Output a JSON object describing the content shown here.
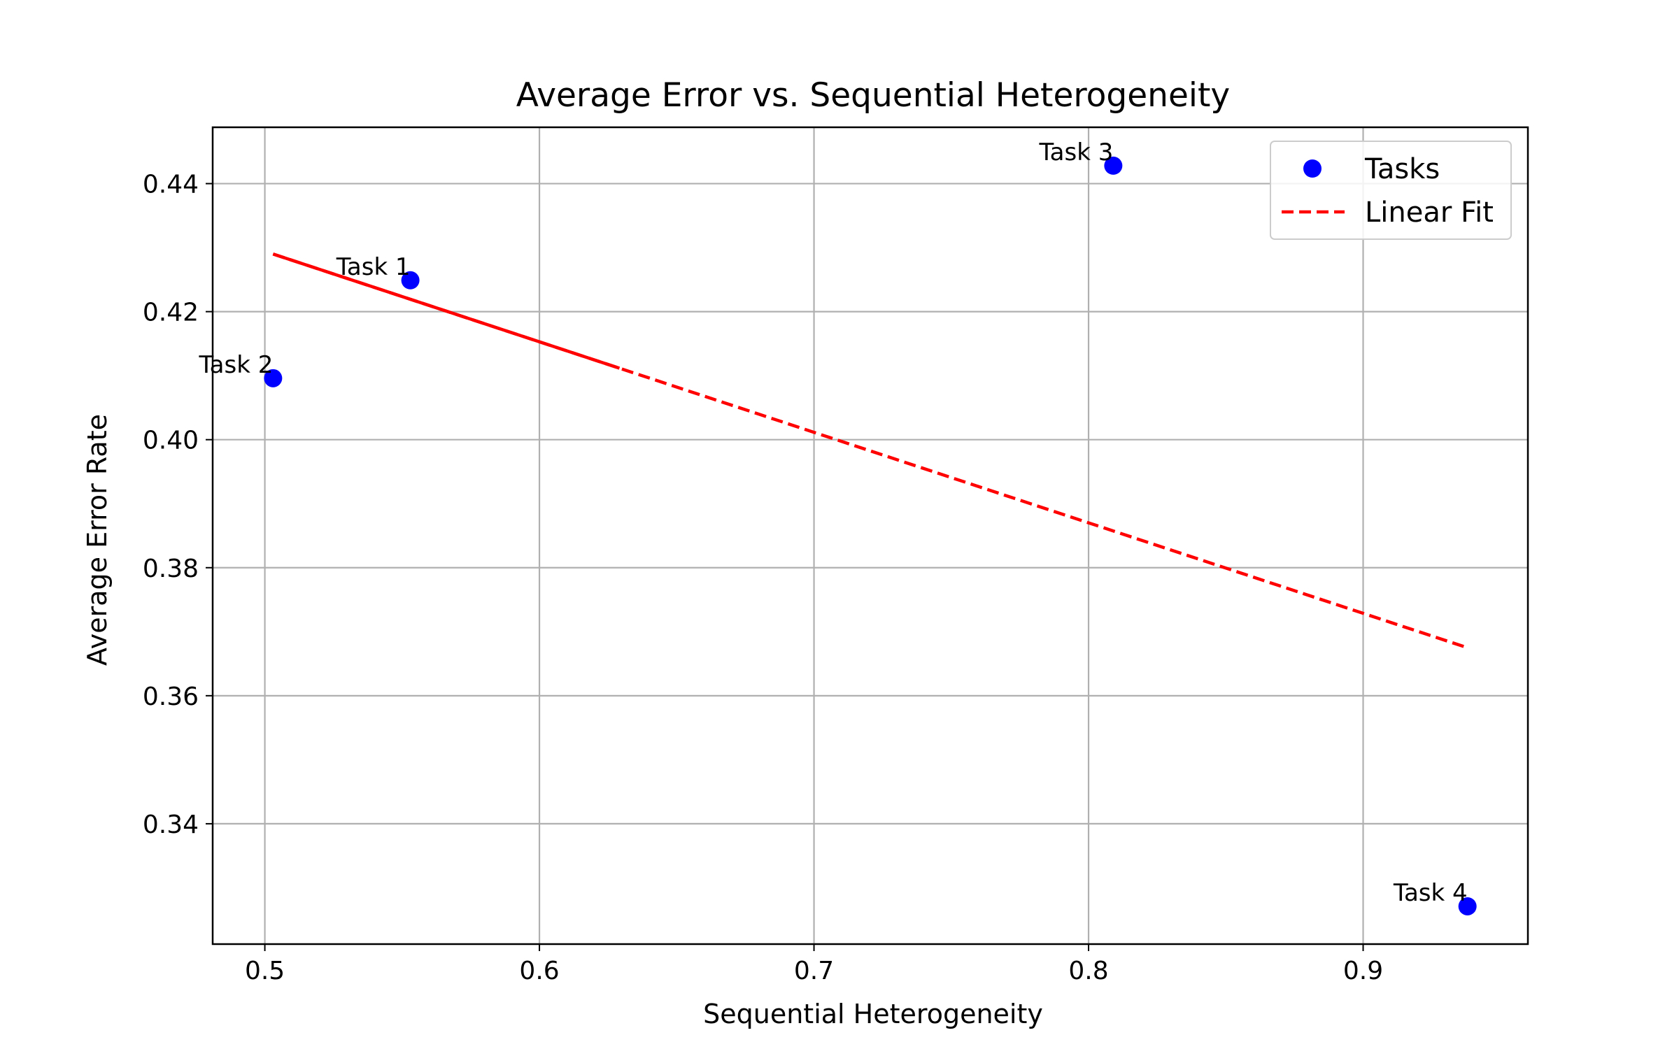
{
  "chart_data": {
    "type": "scatter",
    "title": "Average Error vs. Sequential Heterogeneity",
    "xlabel": "Sequential Heterogeneity",
    "ylabel": "Average Error Rate",
    "xlim": [
      0.481,
      0.96
    ],
    "ylim": [
      0.3212,
      0.4488
    ],
    "xticks": [
      0.5,
      0.6,
      0.7,
      0.8,
      0.9
    ],
    "xtick_labels": [
      "0.5",
      "0.6",
      "0.7",
      "0.8",
      "0.9"
    ],
    "yticks": [
      0.34,
      0.36,
      0.38,
      0.4,
      0.42,
      0.44
    ],
    "ytick_labels": [
      "0.34",
      "0.36",
      "0.38",
      "0.40",
      "0.42",
      "0.44"
    ],
    "grid": true,
    "legend_position": "top-right",
    "series": [
      {
        "name": "Tasks",
        "type": "scatter",
        "color": "#0000ff",
        "points": [
          {
            "label": "Task 1",
            "x": 0.553,
            "y": 0.4249
          },
          {
            "label": "Task 2",
            "x": 0.503,
            "y": 0.4096
          },
          {
            "label": "Task 3",
            "x": 0.809,
            "y": 0.4428
          },
          {
            "label": "Task 4",
            "x": 0.938,
            "y": 0.3271
          }
        ]
      },
      {
        "name": "Linear Fit",
        "type": "line",
        "style": "dashed",
        "color": "#ff0000",
        "x": [
          0.503,
          0.938
        ],
        "y": [
          0.429,
          0.3675
        ]
      }
    ]
  }
}
